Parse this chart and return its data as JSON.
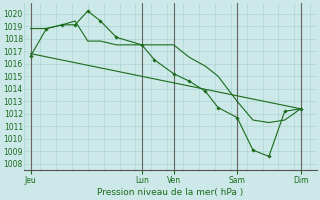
{
  "bg_color": "#cce8e8",
  "grid_color": "#aad4d4",
  "line_color": "#1a6b1a",
  "xlabel": "Pression niveau de la mer( hPa )",
  "ylim": [
    1007.5,
    1020.8
  ],
  "yticks": [
    1008,
    1009,
    1010,
    1011,
    1012,
    1013,
    1014,
    1015,
    1016,
    1017,
    1018,
    1019,
    1020
  ],
  "xtick_labels": [
    "Jeu",
    "Lun",
    "Ven",
    "Sam",
    "Dim"
  ],
  "xtick_positions": [
    0,
    35,
    45,
    65,
    85
  ],
  "xlim": [
    -2,
    90
  ],
  "vlines_x": [
    0,
    35,
    45,
    65,
    85
  ],
  "line1_x": [
    0,
    5,
    10,
    14,
    18,
    22,
    27,
    35,
    39,
    45,
    50,
    55,
    59,
    65,
    70,
    75,
    80,
    85
  ],
  "line1_y": [
    1016.6,
    1018.8,
    1019.1,
    1019.1,
    1020.2,
    1019.4,
    1018.1,
    1017.5,
    1016.3,
    1015.2,
    1014.6,
    1013.8,
    1012.5,
    1011.7,
    1009.1,
    1008.6,
    1012.2,
    1012.4
  ],
  "line2_x": [
    0,
    5,
    10,
    14,
    18,
    22,
    27,
    35,
    39,
    45,
    50,
    55,
    59,
    65,
    70,
    75,
    80,
    85
  ],
  "line2_y": [
    1018.8,
    1018.8,
    1019.1,
    1019.4,
    1017.8,
    1017.8,
    1017.5,
    1017.5,
    1017.5,
    1017.5,
    1016.5,
    1015.8,
    1015.0,
    1013.0,
    1011.5,
    1011.3,
    1011.5,
    1012.4
  ],
  "line3_x": [
    0,
    85
  ],
  "line3_y": [
    1016.8,
    1012.4
  ],
  "figsize": [
    3.2,
    2.0
  ],
  "dpi": 100
}
